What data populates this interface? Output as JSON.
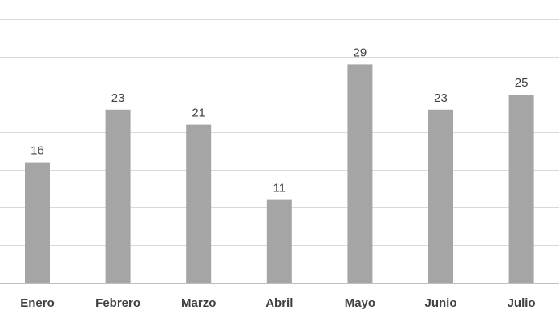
{
  "chart_data": {
    "type": "bar",
    "categories": [
      "Enero",
      "Febrero",
      "Marzo",
      "Abril",
      "Mayo",
      "Junio",
      "Julio"
    ],
    "values": [
      16,
      23,
      21,
      11,
      29,
      23,
      25
    ],
    "title": "",
    "xlabel": "",
    "ylabel": "",
    "ylim": [
      0,
      35
    ],
    "grid": true,
    "data_labels": true,
    "colors": {
      "bar": "#a5a5a5",
      "grid": "#d9d9d9",
      "text": "#404040"
    }
  }
}
